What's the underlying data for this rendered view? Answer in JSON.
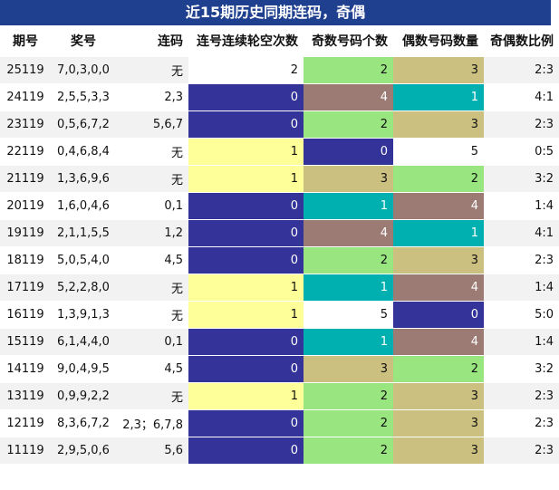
{
  "title": "近15期历史同期连码，奇偶",
  "headers": [
    "期号",
    "奖号",
    "连码",
    "连号连续轮空次数",
    "奇数号码个数",
    "偶数号码数量",
    "奇偶数比例"
  ],
  "colors": {
    "navy": "#333399",
    "yellow": "#ffff99",
    "green": "#99e680",
    "tan": "#ccc080",
    "mauve": "#9b7b73",
    "teal": "#00b0b0",
    "white": "#ffffff"
  },
  "rows": [
    {
      "issue": "25119",
      "draw": "7,0,3,0,0",
      "consec": "无",
      "gap": "2",
      "odd": "2",
      "even": "3",
      "ratio": "2:3",
      "gap_bg": "white",
      "odd_bg": "green",
      "even_bg": "tan"
    },
    {
      "issue": "24119",
      "draw": "2,5,5,3,3",
      "consec": "2,3",
      "gap": "0",
      "odd": "4",
      "even": "1",
      "ratio": "4:1",
      "gap_bg": "navy",
      "odd_bg": "mauve",
      "even_bg": "teal"
    },
    {
      "issue": "23119",
      "draw": "0,5,6,7,2",
      "consec": "5,6,7",
      "gap": "0",
      "odd": "2",
      "even": "3",
      "ratio": "2:3",
      "gap_bg": "navy",
      "odd_bg": "green",
      "even_bg": "tan"
    },
    {
      "issue": "22119",
      "draw": "0,4,6,8,4",
      "consec": "无",
      "gap": "1",
      "odd": "0",
      "even": "5",
      "ratio": "0:5",
      "gap_bg": "yellow",
      "odd_bg": "navy",
      "even_bg": "white"
    },
    {
      "issue": "21119",
      "draw": "1,3,6,9,6",
      "consec": "无",
      "gap": "1",
      "odd": "3",
      "even": "2",
      "ratio": "3:2",
      "gap_bg": "yellow",
      "odd_bg": "tan",
      "even_bg": "green"
    },
    {
      "issue": "20119",
      "draw": "1,6,0,4,6",
      "consec": "0,1",
      "gap": "0",
      "odd": "1",
      "even": "4",
      "ratio": "1:4",
      "gap_bg": "navy",
      "odd_bg": "teal",
      "even_bg": "mauve"
    },
    {
      "issue": "19119",
      "draw": "2,1,1,5,5",
      "consec": "1,2",
      "gap": "0",
      "odd": "4",
      "even": "1",
      "ratio": "4:1",
      "gap_bg": "navy",
      "odd_bg": "mauve",
      "even_bg": "teal"
    },
    {
      "issue": "18119",
      "draw": "5,0,5,4,0",
      "consec": "4,5",
      "gap": "0",
      "odd": "2",
      "even": "3",
      "ratio": "2:3",
      "gap_bg": "navy",
      "odd_bg": "green",
      "even_bg": "tan"
    },
    {
      "issue": "17119",
      "draw": "5,2,2,8,0",
      "consec": "无",
      "gap": "1",
      "odd": "1",
      "even": "4",
      "ratio": "1:4",
      "gap_bg": "yellow",
      "odd_bg": "teal",
      "even_bg": "mauve"
    },
    {
      "issue": "16119",
      "draw": "1,3,9,1,3",
      "consec": "无",
      "gap": "1",
      "odd": "5",
      "even": "0",
      "ratio": "5:0",
      "gap_bg": "yellow",
      "odd_bg": "white",
      "even_bg": "navy"
    },
    {
      "issue": "15119",
      "draw": "6,1,4,4,0",
      "consec": "0,1",
      "gap": "0",
      "odd": "1",
      "even": "4",
      "ratio": "1:4",
      "gap_bg": "navy",
      "odd_bg": "teal",
      "even_bg": "mauve"
    },
    {
      "issue": "14119",
      "draw": "9,0,4,9,5",
      "consec": "4,5",
      "gap": "0",
      "odd": "3",
      "even": "2",
      "ratio": "3:2",
      "gap_bg": "navy",
      "odd_bg": "tan",
      "even_bg": "green"
    },
    {
      "issue": "13119",
      "draw": "0,9,9,2,2",
      "consec": "无",
      "gap": "1",
      "odd": "2",
      "even": "3",
      "ratio": "2:3",
      "gap_bg": "yellow",
      "odd_bg": "green",
      "even_bg": "tan"
    },
    {
      "issue": "12119",
      "draw": "8,3,6,7,2",
      "consec": "2,3；6,7,8",
      "gap": "0",
      "odd": "2",
      "even": "3",
      "ratio": "2:3",
      "gap_bg": "navy",
      "odd_bg": "green",
      "even_bg": "tan"
    },
    {
      "issue": "11119",
      "draw": "2,9,5,0,6",
      "consec": "5,6",
      "gap": "0",
      "odd": "2",
      "even": "3",
      "ratio": "2:3",
      "gap_bg": "navy",
      "odd_bg": "green",
      "even_bg": "tan"
    }
  ]
}
